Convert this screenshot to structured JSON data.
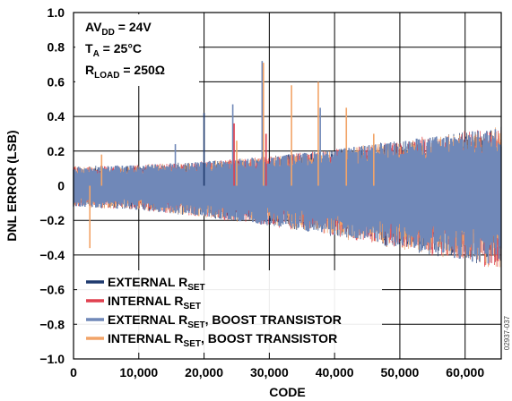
{
  "chart_data": {
    "type": "line",
    "xlabel": "CODE",
    "ylabel": "DNL ERROR (LSB)",
    "xlim": [
      0,
      65535
    ],
    "ylim": [
      -1.0,
      1.0
    ],
    "x_ticks": [
      0,
      10000,
      20000,
      30000,
      40000,
      50000,
      60000
    ],
    "x_tick_labels": [
      "0",
      "10,000",
      "20,000",
      "30,000",
      "40,000",
      "50,000",
      "60,000"
    ],
    "y_ticks": [
      1.0,
      0.8,
      0.6,
      0.4,
      0.2,
      0,
      -0.2,
      -0.4,
      -0.6,
      -0.8,
      -1.0
    ],
    "y_tick_labels": [
      "1.0",
      "0.8",
      "0.6",
      "0.4",
      "0.2",
      "0",
      "−0.2",
      "−0.4",
      "−0.6",
      "−0.8",
      "−1.0"
    ],
    "grid": true,
    "conditions": [
      {
        "main": "AV",
        "sub": "DD",
        "rest": " = 24V"
      },
      {
        "main": "T",
        "sub": "A",
        "rest": " = 25°C"
      },
      {
        "main": "R",
        "sub": "LOAD",
        "rest": " = 250Ω"
      }
    ],
    "envelope": {
      "x": [
        0,
        10000,
        20000,
        30000,
        40000,
        50000,
        60000,
        65535
      ],
      "upper": [
        0.11,
        0.12,
        0.14,
        0.17,
        0.21,
        0.26,
        0.31,
        0.34
      ],
      "lower": [
        -0.12,
        -0.14,
        -0.18,
        -0.23,
        -0.29,
        -0.36,
        -0.43,
        -0.49
      ]
    },
    "series": [
      {
        "name": "EXTERNAL",
        "sub": "SET",
        "suffix": "",
        "color": "#1f3a6e"
      },
      {
        "name": "INTERNAL",
        "sub": "SET",
        "suffix": "",
        "color": "#e0404f"
      },
      {
        "name": "EXTERNAL",
        "sub": "SET",
        "suffix": ", BOOST TRANSISTOR",
        "color": "#7088b8"
      },
      {
        "name": "INTERNAL",
        "sub": "SET",
        "suffix": ", BOOST TRANSISTOR",
        "color": "#f2a468"
      }
    ],
    "spikes": [
      {
        "x": 2500,
        "y": -0.36,
        "series": 3
      },
      {
        "x": 4300,
        "y": 0.18,
        "series": 3
      },
      {
        "x": 15600,
        "y": 0.24,
        "series": 2
      },
      {
        "x": 20000,
        "y": 0.42,
        "series": 0
      },
      {
        "x": 24400,
        "y": 0.47,
        "series": 2
      },
      {
        "x": 24600,
        "y": 0.36,
        "series": 1
      },
      {
        "x": 25000,
        "y": 0.26,
        "series": 3
      },
      {
        "x": 28900,
        "y": 0.72,
        "series": 2
      },
      {
        "x": 29100,
        "y": 0.71,
        "series": 3
      },
      {
        "x": 29500,
        "y": 0.3,
        "series": 1
      },
      {
        "x": 33400,
        "y": 0.58,
        "series": 3
      },
      {
        "x": 37500,
        "y": 0.6,
        "series": 3
      },
      {
        "x": 37800,
        "y": 0.45,
        "series": 2
      },
      {
        "x": 41800,
        "y": 0.45,
        "series": 3
      },
      {
        "x": 46000,
        "y": 0.3,
        "series": 3
      }
    ],
    "figure_id": "02937-037"
  }
}
